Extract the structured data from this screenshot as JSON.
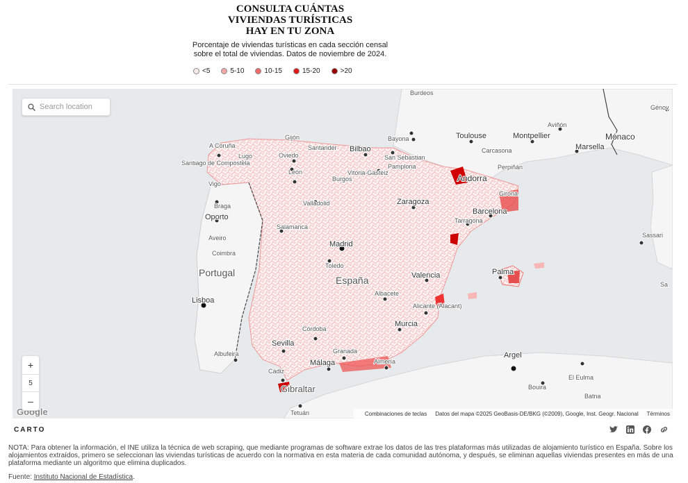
{
  "title_lines": [
    "CONSULTA CUÁNTAS",
    "VIVIENDAS TURÍSTICAS",
    "HAY EN TU ZONA"
  ],
  "subtitle_lines": [
    "Porcentaje de viviendas turísticas en cada sección censal",
    "sobre el total de viviendas. Datos de noviembre de 2024."
  ],
  "legend": [
    {
      "label": "<5",
      "color": "#fbeaea"
    },
    {
      "label": "5-10",
      "color": "#f3a6a6"
    },
    {
      "label": "10-15",
      "color": "#ee6b6b"
    },
    {
      "label": "15-20",
      "color": "#e11818"
    },
    {
      "label": ">20",
      "color": "#9a0000"
    }
  ],
  "search": {
    "placeholder": "Search location"
  },
  "zoom": {
    "plus": "+",
    "level": "5",
    "minus": "–"
  },
  "map_labels": {
    "burdeos": "Burdeos",
    "toulouse": "Toulouse",
    "montpellier": "Montpellier",
    "avinon": "Aviñón",
    "marsella": "Marsella",
    "monaco": "Mónaco",
    "genova": "Génov",
    "carcasona": "Carcasona",
    "perpinan": "Perpiñán",
    "bayona": "Bayona",
    "bilbao": "Bilbao",
    "santander": "Santander",
    "san_sebastian": "San Sebastian",
    "pamplona": "Pamplona",
    "vitoria": "Vitoria-Gasteiz",
    "andorra": "Andorra",
    "girona": "Girona",
    "gijon": "Gijón",
    "oviedo": "Oviedo",
    "a_coruna": "A Coruña",
    "lugo": "Lugo",
    "santiago": "Santiago de Compostela",
    "leon": "León",
    "burgos": "Burgos",
    "vigo": "Vigo",
    "braga": "Braga",
    "porto": "Oporto",
    "aveiro": "Aveiro",
    "coimbra": "Coimbra",
    "portugal": "Portugal",
    "lisboa": "Lisboa",
    "valladolid": "Valladolid",
    "zaragoza": "Zaragoza",
    "barcelona": "Barcelona",
    "tarragona": "Tarragona",
    "salamanca": "Salamanca",
    "madrid": "Madrid",
    "toledo": "Toledo",
    "espana": "España",
    "valencia": "Valencia",
    "palma": "Palma",
    "albacete": "Albacete",
    "alicante": "Alicante (Alacant)",
    "murcia": "Murcia",
    "cordoba": "Córdoba",
    "sevilla": "Sevilla",
    "albufeira": "Albufeira",
    "granada": "Granada",
    "malaga": "Málaga",
    "almeria": "Almería",
    "cadiz": "Cádiz",
    "gibraltar": "Gibraltar",
    "tetuan": "Tetuán",
    "argel": "Argel",
    "bouira": "Bouira",
    "el_eulma": "El Eulma",
    "batna": "Batna",
    "sassari": "Sassari",
    "sardinia": "Sa"
  },
  "attribution": [
    "Combinaciones de teclas",
    "Datos del mapa ©2025 GeoBasis-DE/BKG (©2009), Google, Inst. Geogr. Nacional",
    "Términos"
  ],
  "google_logo": "Google",
  "carto": "CARTO",
  "note": "NOTA: Para obtener la información, el INE utiliza la técnica de web scraping, que mediante programas de software extrae los datos de las tres plataformas más utilizadas de alojamiento turístico en España. Sobre los alojamientos extraídos, primero se seleccionan las viviendas turísticas de acuerdo con la normativa en esta materia de cada comunidad autónoma, y después, se eliminan aquellas viviendas presentes en más de una plataforma mediante un algoritmo que elimina duplicados.",
  "source_prefix": "Fuente: ",
  "source_link": "Instituto Nacional de Estadística",
  "source_suffix": "."
}
